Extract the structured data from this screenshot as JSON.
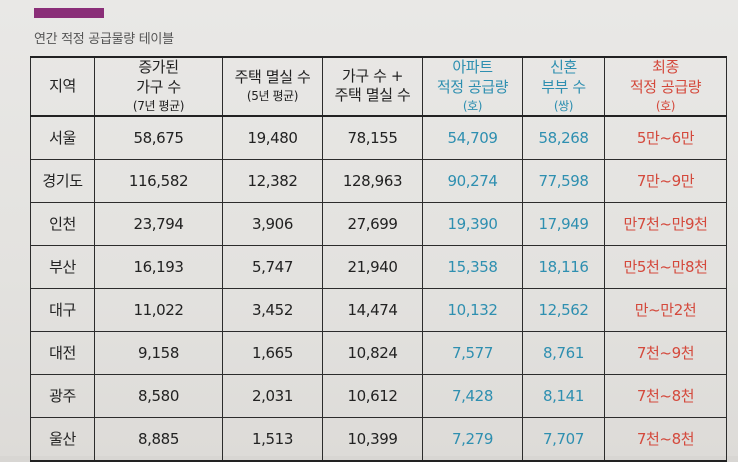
{
  "caption": "연간 적정 공급물량 테이블",
  "headers": [
    {
      "lines": [
        "지역"
      ],
      "sub": "",
      "color": "dark"
    },
    {
      "lines": [
        "증가된",
        "가구 수"
      ],
      "sub": "(7년 평균)",
      "color": "dark"
    },
    {
      "lines": [
        "주택 멸실 수"
      ],
      "sub": "(5년 평균)",
      "color": "dark"
    },
    {
      "lines": [
        "가구 수 +",
        "주택 멸실 수"
      ],
      "sub": "",
      "color": "dark"
    },
    {
      "lines": [
        "아파트",
        "적정 공급량"
      ],
      "sub": "(호)",
      "color": "blue"
    },
    {
      "lines": [
        "신혼",
        "부부 수"
      ],
      "sub": "(쌍)",
      "color": "blue"
    },
    {
      "lines": [
        "최종",
        "적정 공급량"
      ],
      "sub": "(호)",
      "color": "red"
    }
  ],
  "rows": [
    {
      "region": "서울",
      "households": "58,675",
      "demolished": "19,480",
      "sum": "78,155",
      "apt_supply": "54,709",
      "newlyweds": "58,268",
      "final": "5만~6만"
    },
    {
      "region": "경기도",
      "households": "116,582",
      "demolished": "12,382",
      "sum": "128,963",
      "apt_supply": "90,274",
      "newlyweds": "77,598",
      "final": "7만~9만"
    },
    {
      "region": "인천",
      "households": "23,794",
      "demolished": "3,906",
      "sum": "27,699",
      "apt_supply": "19,390",
      "newlyweds": "17,949",
      "final": "만7천~만9천"
    },
    {
      "region": "부산",
      "households": "16,193",
      "demolished": "5,747",
      "sum": "21,940",
      "apt_supply": "15,358",
      "newlyweds": "18,116",
      "final": "만5천~만8천"
    },
    {
      "region": "대구",
      "households": "11,022",
      "demolished": "3,452",
      "sum": "14,474",
      "apt_supply": "10,132",
      "newlyweds": "12,562",
      "final": "만~만2천"
    },
    {
      "region": "대전",
      "households": "9,158",
      "demolished": "1,665",
      "sum": "10,824",
      "apt_supply": "7,577",
      "newlyweds": "8,761",
      "final": "7천~9천"
    },
    {
      "region": "광주",
      "households": "8,580",
      "demolished": "2,031",
      "sum": "10,612",
      "apt_supply": "7,428",
      "newlyweds": "8,141",
      "final": "7천~8천"
    },
    {
      "region": "울산",
      "households": "8,885",
      "demolished": "1,513",
      "sum": "10,399",
      "apt_supply": "7,279",
      "newlyweds": "7,707",
      "final": "7천~8천"
    }
  ],
  "colors": {
    "accent_bar": "#8a2e78",
    "blue": "#2e8fb0",
    "red": "#d4493c"
  }
}
